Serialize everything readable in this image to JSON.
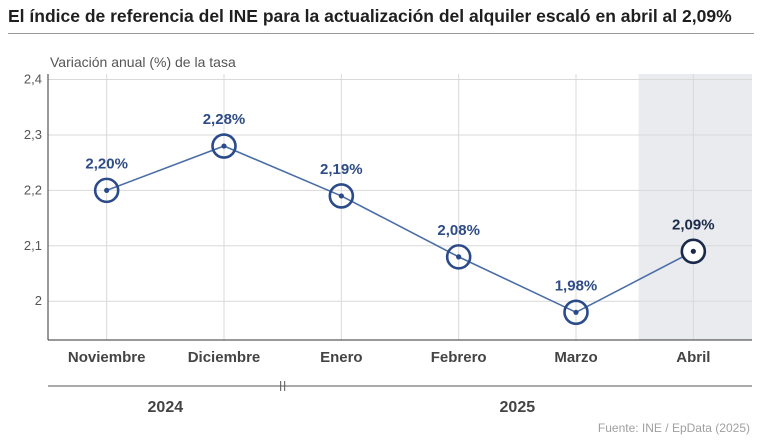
{
  "title": "El índice de referencia del INE para la actualización del alquiler escaló en abril al 2,09%",
  "source": "Fuente: INE / EpData (2025)",
  "colors": {
    "line": "#4a6da7",
    "marker": "#2a4a8a",
    "marker_last": "#1a2a4a",
    "label": "#2e4c86",
    "label_last": "#1a2a4a",
    "highlight": "#e9ebee",
    "grid": "#d9d9d9"
  },
  "chart_data": {
    "type": "line",
    "title": "El índice de referencia del INE para la actualización del alquiler escaló en abril al 2,09%",
    "ylabel": "Variación anual (%) de la tasa",
    "xlabel": "",
    "categories": [
      "Noviembre",
      "Diciembre",
      "Enero",
      "Febrero",
      "Marzo",
      "Abril"
    ],
    "series": [
      {
        "name": "Variación anual (%)",
        "values": [
          2.2,
          2.28,
          2.19,
          2.08,
          1.98,
          2.09
        ]
      }
    ],
    "data_labels": [
      "2,20%",
      "2,28%",
      "2,19%",
      "2,08%",
      "1,98%",
      "2,09%"
    ],
    "ylim": [
      1.93,
      2.41
    ],
    "yticks": [
      2.0,
      2.1,
      2.2,
      2.3,
      2.4
    ],
    "ytick_labels": [
      "2",
      "2,1",
      "2,2",
      "2,3",
      "2,4"
    ],
    "grid": true,
    "highlight_category": "Abril",
    "year_groups": [
      {
        "label": "2024",
        "categories": [
          "Noviembre",
          "Diciembre"
        ]
      },
      {
        "label": "2025",
        "categories": [
          "Enero",
          "Febrero",
          "Marzo",
          "Abril"
        ]
      }
    ]
  }
}
